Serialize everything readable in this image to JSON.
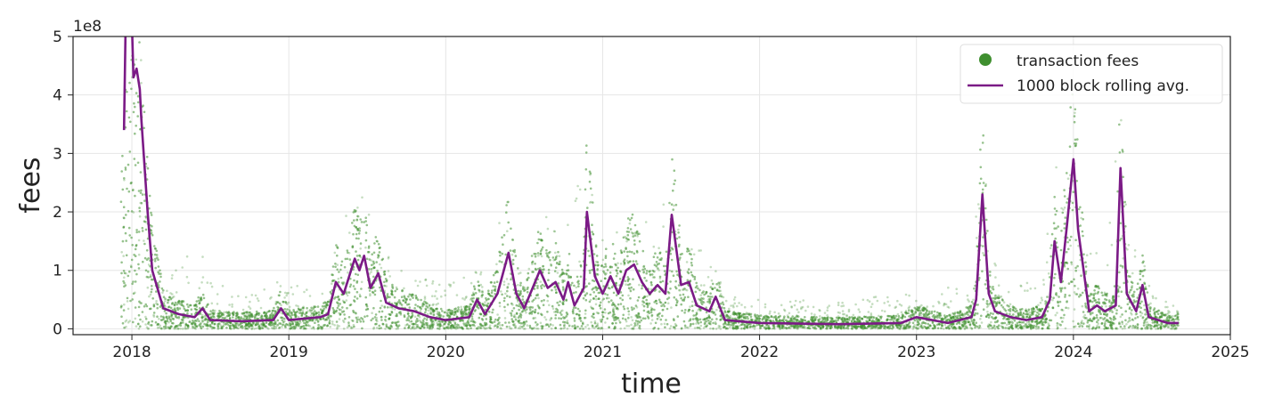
{
  "chart_data": {
    "type": "scatter",
    "title": "",
    "xlabel": "time",
    "ylabel": "fees",
    "y_offset_label": "1e8",
    "xlim": [
      2017.625,
      2025.0
    ],
    "ylim": [
      -0.1,
      5
    ],
    "y_unit_scale": 100000000,
    "grid": true,
    "legend_position": "top-right",
    "x_ticks": [
      "2018",
      "2019",
      "2020",
      "2021",
      "2022",
      "2023",
      "2024",
      "2025"
    ],
    "y_ticks": [
      "0",
      "1",
      "2",
      "3",
      "4",
      "5"
    ],
    "colors": {
      "scatter": "#3f8f2f",
      "line": "#7b1a86"
    },
    "series": [
      {
        "name": "transaction fees",
        "kind": "scatter",
        "upper_envelope": [
          [
            2017.93,
            3.0
          ],
          [
            2017.98,
            5.0
          ],
          [
            2018.05,
            5.0
          ],
          [
            2018.1,
            3.0
          ],
          [
            2018.15,
            1.4
          ],
          [
            2018.2,
            1.0
          ],
          [
            2018.3,
            1.1
          ],
          [
            2018.45,
            1.5
          ],
          [
            2018.5,
            0.8
          ],
          [
            2018.8,
            0.6
          ],
          [
            2018.95,
            0.9
          ],
          [
            2019.1,
            0.8
          ],
          [
            2019.25,
            0.9
          ],
          [
            2019.3,
            1.8
          ],
          [
            2019.4,
            2.3
          ],
          [
            2019.45,
            2.5
          ],
          [
            2019.52,
            2.0
          ],
          [
            2019.6,
            1.3
          ],
          [
            2019.8,
            0.9
          ],
          [
            2020.0,
            0.8
          ],
          [
            2020.2,
            1.0
          ],
          [
            2020.3,
            1.2
          ],
          [
            2020.38,
            2.5
          ],
          [
            2020.45,
            1.2
          ],
          [
            2020.55,
            1.6
          ],
          [
            2020.6,
            2.2
          ],
          [
            2020.75,
            1.8
          ],
          [
            2020.88,
            3.0
          ],
          [
            2020.92,
            3.6
          ],
          [
            2020.96,
            1.5
          ],
          [
            2021.1,
            1.8
          ],
          [
            2021.2,
            2.0
          ],
          [
            2021.3,
            1.8
          ],
          [
            2021.44,
            3.0
          ],
          [
            2021.5,
            2.0
          ],
          [
            2021.6,
            1.4
          ],
          [
            2021.72,
            1.2
          ],
          [
            2021.8,
            0.6
          ],
          [
            2022.0,
            0.5
          ],
          [
            2022.5,
            0.5
          ],
          [
            2023.0,
            0.6
          ],
          [
            2023.35,
            0.8
          ],
          [
            2023.42,
            3.6
          ],
          [
            2023.48,
            1.2
          ],
          [
            2023.6,
            0.7
          ],
          [
            2023.8,
            0.9
          ],
          [
            2023.88,
            2.8
          ],
          [
            2023.95,
            3.5
          ],
          [
            2024.0,
            4.2
          ],
          [
            2024.05,
            2.5
          ],
          [
            2024.1,
            1.4
          ],
          [
            2024.2,
            1.4
          ],
          [
            2024.3,
            3.8
          ],
          [
            2024.36,
            1.4
          ],
          [
            2024.44,
            1.3
          ],
          [
            2024.5,
            0.6
          ],
          [
            2024.67,
            0.4
          ]
        ]
      },
      {
        "name": "1000 block rolling avg.",
        "kind": "line",
        "points": [
          [
            2017.95,
            3.4
          ],
          [
            2017.96,
            5.2
          ],
          [
            2018.0,
            5.2
          ],
          [
            2018.01,
            4.3
          ],
          [
            2018.03,
            4.45
          ],
          [
            2018.05,
            4.1
          ],
          [
            2018.06,
            3.6
          ],
          [
            2018.1,
            2.0
          ],
          [
            2018.13,
            1.0
          ],
          [
            2018.2,
            0.35
          ],
          [
            2018.3,
            0.25
          ],
          [
            2018.4,
            0.2
          ],
          [
            2018.45,
            0.35
          ],
          [
            2018.5,
            0.15
          ],
          [
            2018.7,
            0.13
          ],
          [
            2018.9,
            0.15
          ],
          [
            2018.95,
            0.35
          ],
          [
            2019.0,
            0.15
          ],
          [
            2019.2,
            0.2
          ],
          [
            2019.25,
            0.25
          ],
          [
            2019.3,
            0.8
          ],
          [
            2019.35,
            0.6
          ],
          [
            2019.42,
            1.2
          ],
          [
            2019.45,
            1.0
          ],
          [
            2019.48,
            1.25
          ],
          [
            2019.52,
            0.7
          ],
          [
            2019.57,
            0.95
          ],
          [
            2019.62,
            0.45
          ],
          [
            2019.7,
            0.35
          ],
          [
            2019.8,
            0.3
          ],
          [
            2019.9,
            0.2
          ],
          [
            2020.0,
            0.15
          ],
          [
            2020.15,
            0.2
          ],
          [
            2020.2,
            0.5
          ],
          [
            2020.25,
            0.25
          ],
          [
            2020.33,
            0.6
          ],
          [
            2020.4,
            1.3
          ],
          [
            2020.45,
            0.6
          ],
          [
            2020.5,
            0.35
          ],
          [
            2020.6,
            1.0
          ],
          [
            2020.65,
            0.7
          ],
          [
            2020.7,
            0.8
          ],
          [
            2020.75,
            0.5
          ],
          [
            2020.78,
            0.8
          ],
          [
            2020.82,
            0.4
          ],
          [
            2020.88,
            0.7
          ],
          [
            2020.9,
            2.0
          ],
          [
            2020.95,
            0.9
          ],
          [
            2021.0,
            0.6
          ],
          [
            2021.05,
            0.9
          ],
          [
            2021.1,
            0.6
          ],
          [
            2021.15,
            1.0
          ],
          [
            2021.2,
            1.1
          ],
          [
            2021.25,
            0.8
          ],
          [
            2021.3,
            0.6
          ],
          [
            2021.35,
            0.75
          ],
          [
            2021.4,
            0.6
          ],
          [
            2021.44,
            1.95
          ],
          [
            2021.5,
            0.75
          ],
          [
            2021.55,
            0.8
          ],
          [
            2021.6,
            0.4
          ],
          [
            2021.68,
            0.3
          ],
          [
            2021.72,
            0.55
          ],
          [
            2021.78,
            0.15
          ],
          [
            2022.0,
            0.1
          ],
          [
            2022.5,
            0.08
          ],
          [
            2022.9,
            0.1
          ],
          [
            2023.0,
            0.2
          ],
          [
            2023.2,
            0.1
          ],
          [
            2023.35,
            0.2
          ],
          [
            2023.38,
            0.5
          ],
          [
            2023.42,
            2.3
          ],
          [
            2023.46,
            0.6
          ],
          [
            2023.5,
            0.3
          ],
          [
            2023.6,
            0.2
          ],
          [
            2023.7,
            0.15
          ],
          [
            2023.8,
            0.2
          ],
          [
            2023.85,
            0.5
          ],
          [
            2023.88,
            1.5
          ],
          [
            2023.92,
            0.8
          ],
          [
            2023.96,
            1.8
          ],
          [
            2024.0,
            2.9
          ],
          [
            2024.03,
            1.7
          ],
          [
            2024.07,
            0.9
          ],
          [
            2024.1,
            0.3
          ],
          [
            2024.15,
            0.4
          ],
          [
            2024.2,
            0.3
          ],
          [
            2024.27,
            0.4
          ],
          [
            2024.3,
            2.75
          ],
          [
            2024.34,
            0.6
          ],
          [
            2024.4,
            0.3
          ],
          [
            2024.44,
            0.75
          ],
          [
            2024.48,
            0.2
          ],
          [
            2024.6,
            0.1
          ],
          [
            2024.67,
            0.1
          ]
        ]
      }
    ]
  }
}
